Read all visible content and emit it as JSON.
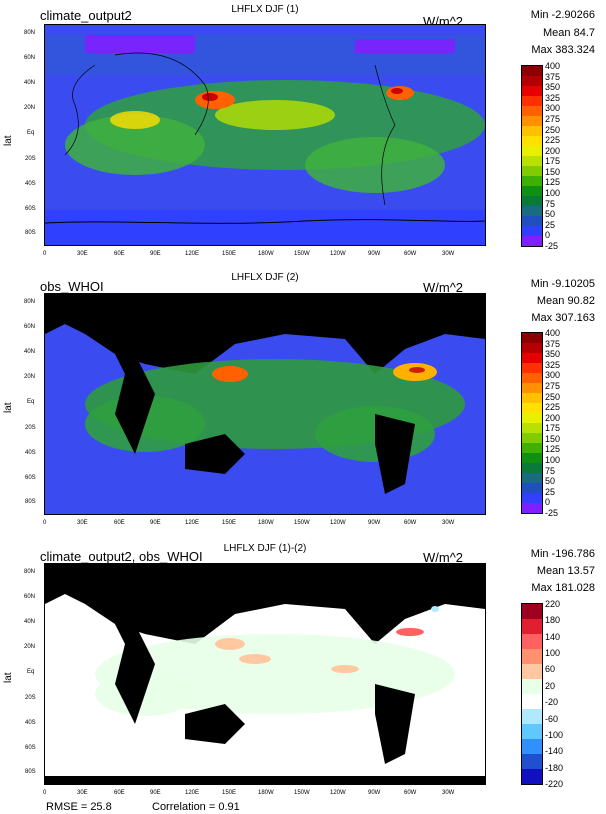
{
  "panels": [
    {
      "id": "p1",
      "left_title": "climate_output2",
      "center_title": "LHFLX DJF (1)",
      "units": "W/m^2",
      "stats": {
        "min": "Min -2.90266",
        "mean": "Mean 84.7",
        "max": "Max 383.324"
      },
      "y_axis_label": "lat",
      "colorbar_labels": [
        "400",
        "375",
        "350",
        "325",
        "300",
        "275",
        "250",
        "225",
        "200",
        "175",
        "150",
        "125",
        "100",
        "75",
        "50",
        "25",
        "0",
        "-25"
      ],
      "colorbar_colors": [
        "#8b0000",
        "#b40000",
        "#e60000",
        "#ff3000",
        "#ff6000",
        "#ff9000",
        "#ffc000",
        "#ffe000",
        "#e8f000",
        "#b8e000",
        "#80cc00",
        "#40b000",
        "#109010",
        "#0a7a3a",
        "#1a6a80",
        "#2050c0",
        "#3040ff",
        "#8020ff"
      ]
    },
    {
      "id": "p2",
      "left_title": "obs_WHOI",
      "center_title": "LHFLX DJF (2)",
      "units": "W/m^2",
      "stats": {
        "min": "Min -9.10205",
        "mean": "Mean 90.82",
        "max": "Max 307.163"
      },
      "y_axis_label": "lat",
      "colorbar_labels": [
        "400",
        "375",
        "350",
        "325",
        "300",
        "275",
        "250",
        "225",
        "200",
        "175",
        "150",
        "125",
        "100",
        "75",
        "50",
        "25",
        "0",
        "-25"
      ],
      "colorbar_colors": [
        "#8b0000",
        "#b40000",
        "#e60000",
        "#ff3000",
        "#ff6000",
        "#ff9000",
        "#ffc000",
        "#ffe000",
        "#e8f000",
        "#b8e000",
        "#80cc00",
        "#40b000",
        "#109010",
        "#0a7a3a",
        "#1a6a80",
        "#2050c0",
        "#3040ff",
        "#8020ff"
      ]
    },
    {
      "id": "p3",
      "left_title": "climate_output2, obs_WHOI",
      "center_title": "LHFLX DJF (1)-(2)",
      "units": "W/m^2",
      "stats": {
        "min": "Min -196.786",
        "mean": "Mean 13.57",
        "max": "Max 181.028"
      },
      "y_axis_label": "lat",
      "colorbar_labels": [
        "220",
        "180",
        "140",
        "100",
        "60",
        "20",
        "-20",
        "-60",
        "-100",
        "-140",
        "-180",
        "-220"
      ],
      "colorbar_colors": [
        "#a00020",
        "#e02030",
        "#ff6060",
        "#ff9070",
        "#ffc8a0",
        "#e8ffe8",
        "#ffffff",
        "#b0e8ff",
        "#60c8ff",
        "#3090ff",
        "#2050d0",
        "#1010c0"
      ]
    }
  ],
  "lat_ticks": [
    "80N",
    "60N",
    "40N",
    "20N",
    "Eq",
    "20S",
    "40S",
    "60S",
    "80S"
  ],
  "lon_ticks": [
    "0",
    "30E",
    "60E",
    "90E",
    "120E",
    "150E",
    "180W",
    "150W",
    "120W",
    "90W",
    "60W",
    "30W"
  ],
  "footer": {
    "rmse": "RMSE = 25.8",
    "correlation": "Correlation = 0.91"
  },
  "colors": {
    "ocean_base_1": "#3a4cf0",
    "ocean_mid": "#2f9a3c",
    "land_obs": "#000000",
    "diff_bg": "#ffffff"
  }
}
